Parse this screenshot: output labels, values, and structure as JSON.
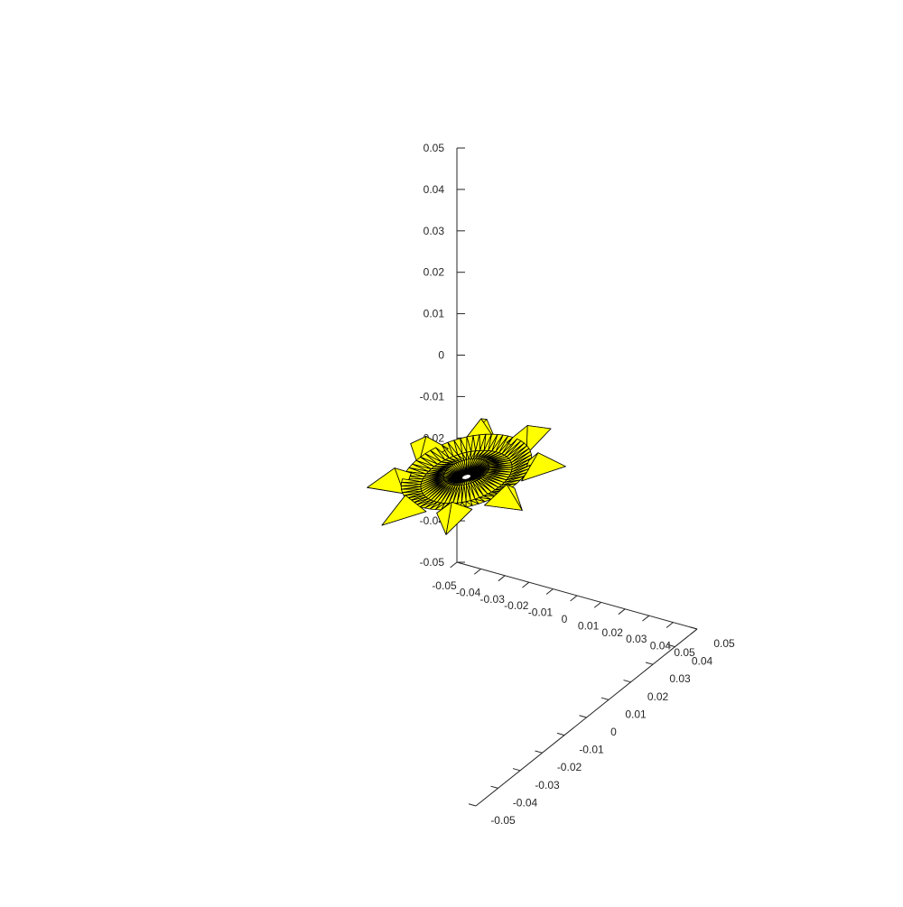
{
  "figure": {
    "background": "#ffffff"
  },
  "chart_data": {
    "type": "surface",
    "title": "",
    "xlabel": "",
    "ylabel": "",
    "zlabel": "",
    "face_color": "#ffff00",
    "edge_color": "#000000",
    "grid": false,
    "box": false,
    "xlim": [
      -0.05,
      0.05
    ],
    "ylim": [
      -0.05,
      0.05
    ],
    "zlim": [
      -0.05,
      0.05
    ],
    "x_ticks": [
      "-0.05",
      "-0.04",
      "-0.03",
      "-0.02",
      "-0.01",
      "0",
      "0.01",
      "0.02",
      "0.03",
      "0.04",
      "0.05"
    ],
    "y_ticks": [
      "0.05",
      "0.04",
      "0.03",
      "0.02",
      "0.01",
      "0",
      "-0.01",
      "-0.02",
      "-0.03",
      "-0.04",
      "-0.05"
    ],
    "z_ticks": [
      "0.05",
      "0.04",
      "0.03",
      "0.02",
      "0.01",
      "0",
      "-0.01",
      "-0.02",
      "-0.03",
      "-0.04",
      "-0.05"
    ],
    "shape": {
      "description_free": true,
      "disc_radius": 0.02,
      "hole_radius": 0.0014,
      "spike_count": 8,
      "spike_tip_radius": 0.031,
      "spike_half_width": 0.0055,
      "spike_height": 0.004,
      "sector_count": 8,
      "surface_z": 0.0
    }
  }
}
